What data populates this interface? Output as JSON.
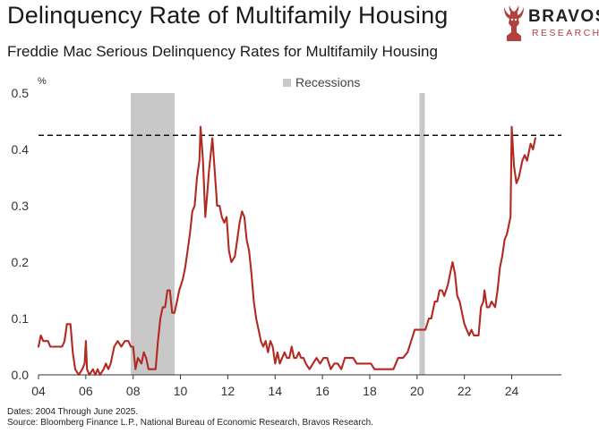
{
  "header": {
    "title": "Delinquency Rate of Multifamily Housing",
    "subtitle": "Freddie Mac Serious Delinquency Rates for Multifamily Housing"
  },
  "brand": {
    "name": "BRAVOS",
    "tagline": "RESEARCH",
    "accent": "#b0413e"
  },
  "footer": {
    "dates": "Dates: 2004 Through June 2025.",
    "source": "Source: Bloomberg Finance L.P., National Bureau of Economic Research, Bravos Research."
  },
  "chart_data": {
    "type": "line",
    "title": "Freddie Mac Serious Delinquency Rates for Multifamily Housing",
    "ylabel": "%",
    "xlabel": "",
    "xlim": [
      2004,
      2026.1
    ],
    "ylim": [
      0,
      0.5
    ],
    "yticks": [
      0.0,
      0.1,
      0.2,
      0.3,
      0.4,
      0.5
    ],
    "ytick_labels": [
      "0.0",
      "0.1",
      "0.2",
      "0.3",
      "0.4",
      "0.5"
    ],
    "xticks": [
      2004,
      2006,
      2008,
      2010,
      2012,
      2014,
      2016,
      2018,
      2020,
      2022,
      2024
    ],
    "xtick_labels": [
      "04",
      "06",
      "08",
      "10",
      "12",
      "14",
      "16",
      "18",
      "20",
      "22",
      "24"
    ],
    "grid": false,
    "legend": {
      "label": "Recessions",
      "position": "top-center"
    },
    "colors": {
      "line": "#b22a22",
      "recession": "#c8c8c8",
      "reference": "#111111"
    },
    "recessions": [
      {
        "start": 2007.9,
        "end": 2009.75
      },
      {
        "start": 2020.1,
        "end": 2020.33
      }
    ],
    "reference_line": {
      "y": 0.425,
      "style": "dashed"
    },
    "series": [
      {
        "name": "Serious Delinquency Rate",
        "points": [
          [
            2004.0,
            0.05
          ],
          [
            2004.1,
            0.07
          ],
          [
            2004.2,
            0.06
          ],
          [
            2004.4,
            0.06
          ],
          [
            2004.5,
            0.05
          ],
          [
            2004.7,
            0.05
          ],
          [
            2004.9,
            0.05
          ],
          [
            2005.0,
            0.05
          ],
          [
            2005.1,
            0.06
          ],
          [
            2005.2,
            0.09
          ],
          [
            2005.35,
            0.09
          ],
          [
            2005.45,
            0.04
          ],
          [
            2005.55,
            0.01
          ],
          [
            2005.7,
            0.0
          ],
          [
            2005.85,
            0.01
          ],
          [
            2005.95,
            0.02
          ],
          [
            2006.0,
            0.06
          ],
          [
            2006.05,
            0.01
          ],
          [
            2006.15,
            0.0
          ],
          [
            2006.3,
            0.01
          ],
          [
            2006.4,
            0.0
          ],
          [
            2006.5,
            0.01
          ],
          [
            2006.6,
            0.0
          ],
          [
            2006.75,
            0.01
          ],
          [
            2006.85,
            0.02
          ],
          [
            2006.95,
            0.01
          ],
          [
            2007.05,
            0.02
          ],
          [
            2007.2,
            0.05
          ],
          [
            2007.35,
            0.06
          ],
          [
            2007.5,
            0.05
          ],
          [
            2007.65,
            0.06
          ],
          [
            2007.8,
            0.06
          ],
          [
            2007.9,
            0.05
          ],
          [
            2008.0,
            0.05
          ],
          [
            2008.1,
            0.01
          ],
          [
            2008.2,
            0.03
          ],
          [
            2008.35,
            0.02
          ],
          [
            2008.45,
            0.04
          ],
          [
            2008.55,
            0.03
          ],
          [
            2008.65,
            0.01
          ],
          [
            2008.8,
            0.01
          ],
          [
            2008.95,
            0.01
          ],
          [
            2009.05,
            0.06
          ],
          [
            2009.15,
            0.1
          ],
          [
            2009.25,
            0.12
          ],
          [
            2009.35,
            0.12
          ],
          [
            2009.45,
            0.15
          ],
          [
            2009.55,
            0.15
          ],
          [
            2009.65,
            0.11
          ],
          [
            2009.75,
            0.11
          ],
          [
            2009.85,
            0.13
          ],
          [
            2009.95,
            0.15
          ],
          [
            2010.1,
            0.17
          ],
          [
            2010.2,
            0.19
          ],
          [
            2010.3,
            0.22
          ],
          [
            2010.4,
            0.25
          ],
          [
            2010.5,
            0.29
          ],
          [
            2010.6,
            0.3
          ],
          [
            2010.7,
            0.35
          ],
          [
            2010.8,
            0.38
          ],
          [
            2010.85,
            0.44
          ],
          [
            2010.95,
            0.38
          ],
          [
            2011.05,
            0.28
          ],
          [
            2011.15,
            0.33
          ],
          [
            2011.2,
            0.36
          ],
          [
            2011.3,
            0.4
          ],
          [
            2011.35,
            0.42
          ],
          [
            2011.45,
            0.36
          ],
          [
            2011.55,
            0.3
          ],
          [
            2011.65,
            0.3
          ],
          [
            2011.75,
            0.28
          ],
          [
            2011.85,
            0.27
          ],
          [
            2011.95,
            0.28
          ],
          [
            2012.05,
            0.22
          ],
          [
            2012.15,
            0.2
          ],
          [
            2012.3,
            0.21
          ],
          [
            2012.4,
            0.24
          ],
          [
            2012.5,
            0.27
          ],
          [
            2012.6,
            0.29
          ],
          [
            2012.7,
            0.28
          ],
          [
            2012.8,
            0.24
          ],
          [
            2012.9,
            0.22
          ],
          [
            2013.0,
            0.18
          ],
          [
            2013.1,
            0.13
          ],
          [
            2013.2,
            0.1
          ],
          [
            2013.3,
            0.08
          ],
          [
            2013.4,
            0.06
          ],
          [
            2013.5,
            0.05
          ],
          [
            2013.6,
            0.06
          ],
          [
            2013.7,
            0.04
          ],
          [
            2013.8,
            0.06
          ],
          [
            2013.9,
            0.05
          ],
          [
            2014.0,
            0.02
          ],
          [
            2014.1,
            0.04
          ],
          [
            2014.2,
            0.02
          ],
          [
            2014.3,
            0.03
          ],
          [
            2014.4,
            0.04
          ],
          [
            2014.5,
            0.03
          ],
          [
            2014.6,
            0.03
          ],
          [
            2014.7,
            0.05
          ],
          [
            2014.8,
            0.03
          ],
          [
            2014.9,
            0.03
          ],
          [
            2015.0,
            0.04
          ],
          [
            2015.1,
            0.03
          ],
          [
            2015.2,
            0.03
          ],
          [
            2015.3,
            0.02
          ],
          [
            2015.45,
            0.01
          ],
          [
            2015.6,
            0.02
          ],
          [
            2015.75,
            0.03
          ],
          [
            2015.9,
            0.02
          ],
          [
            2016.05,
            0.03
          ],
          [
            2016.2,
            0.03
          ],
          [
            2016.35,
            0.01
          ],
          [
            2016.5,
            0.02
          ],
          [
            2016.65,
            0.02
          ],
          [
            2016.8,
            0.01
          ],
          [
            2016.95,
            0.03
          ],
          [
            2017.1,
            0.03
          ],
          [
            2017.3,
            0.03
          ],
          [
            2017.45,
            0.02
          ],
          [
            2017.6,
            0.02
          ],
          [
            2017.75,
            0.02
          ],
          [
            2017.9,
            0.02
          ],
          [
            2018.05,
            0.02
          ],
          [
            2018.2,
            0.01
          ],
          [
            2018.4,
            0.01
          ],
          [
            2018.6,
            0.01
          ],
          [
            2018.8,
            0.01
          ],
          [
            2019.0,
            0.01
          ],
          [
            2019.2,
            0.03
          ],
          [
            2019.4,
            0.03
          ],
          [
            2019.6,
            0.04
          ],
          [
            2019.75,
            0.06
          ],
          [
            2019.9,
            0.08
          ],
          [
            2020.1,
            0.08
          ],
          [
            2020.35,
            0.08
          ],
          [
            2020.5,
            0.1
          ],
          [
            2020.6,
            0.1
          ],
          [
            2020.75,
            0.13
          ],
          [
            2020.85,
            0.13
          ],
          [
            2020.95,
            0.15
          ],
          [
            2021.05,
            0.15
          ],
          [
            2021.15,
            0.14
          ],
          [
            2021.3,
            0.16
          ],
          [
            2021.4,
            0.18
          ],
          [
            2021.5,
            0.2
          ],
          [
            2021.6,
            0.18
          ],
          [
            2021.7,
            0.14
          ],
          [
            2021.8,
            0.13
          ],
          [
            2021.9,
            0.11
          ],
          [
            2022.0,
            0.09
          ],
          [
            2022.1,
            0.08
          ],
          [
            2022.2,
            0.07
          ],
          [
            2022.3,
            0.08
          ],
          [
            2022.4,
            0.07
          ],
          [
            2022.5,
            0.07
          ],
          [
            2022.6,
            0.07
          ],
          [
            2022.7,
            0.12
          ],
          [
            2022.8,
            0.13
          ],
          [
            2022.85,
            0.15
          ],
          [
            2022.95,
            0.12
          ],
          [
            2023.05,
            0.12
          ],
          [
            2023.15,
            0.13
          ],
          [
            2023.3,
            0.12
          ],
          [
            2023.4,
            0.15
          ],
          [
            2023.5,
            0.19
          ],
          [
            2023.6,
            0.21
          ],
          [
            2023.7,
            0.24
          ],
          [
            2023.8,
            0.25
          ],
          [
            2023.95,
            0.28
          ],
          [
            2024.0,
            0.44
          ],
          [
            2024.1,
            0.37
          ],
          [
            2024.2,
            0.34
          ],
          [
            2024.3,
            0.35
          ],
          [
            2024.45,
            0.38
          ],
          [
            2024.55,
            0.39
          ],
          [
            2024.65,
            0.38
          ],
          [
            2024.8,
            0.41
          ],
          [
            2024.9,
            0.4
          ],
          [
            2025.0,
            0.42
          ]
        ]
      }
    ]
  }
}
